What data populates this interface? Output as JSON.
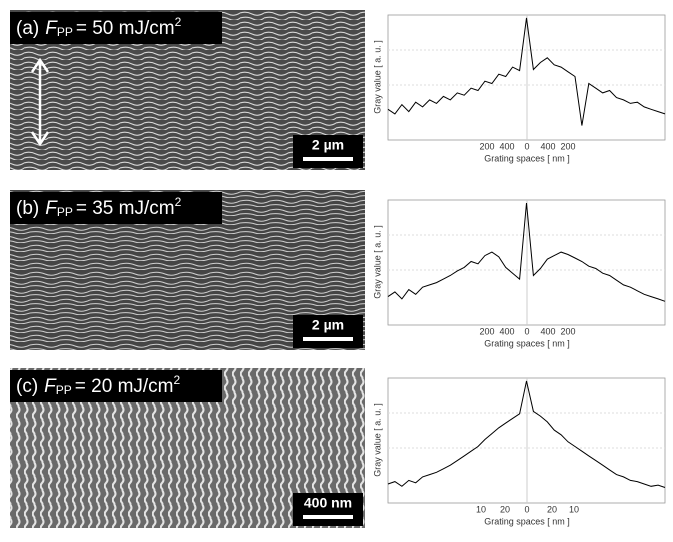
{
  "panels": [
    {
      "label": "(a)",
      "symbol": "F",
      "subscript": "PP",
      "value_text": "= 50 mJ/cm",
      "superscript": "2",
      "scale_bar": "2 µm",
      "plot": {
        "ylabel": "Gray value [ a. u. ]",
        "xlabel": "Grating spaces [ nm ]",
        "xtick_labels": [
          "200",
          "400",
          "0",
          "400",
          "200"
        ],
        "profile": [
          22,
          18,
          26,
          20,
          28,
          24,
          30,
          27,
          33,
          30,
          36,
          34,
          40,
          38,
          46,
          44,
          52,
          50,
          58,
          55,
          100,
          56,
          62,
          66,
          60,
          58,
          54,
          50,
          8,
          44,
          40,
          36,
          38,
          32,
          30,
          27,
          28,
          24,
          22,
          20,
          18
        ]
      }
    },
    {
      "label": "(b)",
      "symbol": "F",
      "subscript": "PP",
      "value_text": "= 35 mJ/cm",
      "superscript": "2",
      "scale_bar": "2 µm",
      "plot": {
        "ylabel": "Gray value [ a. u. ]",
        "xlabel": "Grating spaces [ nm ]",
        "xtick_labels": [
          "200",
          "400",
          "0",
          "400",
          "200"
        ],
        "profile": [
          20,
          24,
          18,
          26,
          22,
          28,
          30,
          32,
          35,
          38,
          42,
          45,
          50,
          48,
          55,
          58,
          54,
          45,
          40,
          35,
          100,
          38,
          44,
          52,
          55,
          58,
          56,
          53,
          50,
          46,
          44,
          40,
          38,
          34,
          30,
          28,
          25,
          22,
          20,
          18,
          16
        ]
      }
    },
    {
      "label": "(c)",
      "symbol": "F",
      "subscript": "PP",
      "value_text": "= 20 mJ/cm",
      "superscript": "2",
      "scale_bar": "400 nm",
      "plot": {
        "ylabel": "Gray value [ a. u. ]",
        "xlabel": "Grating spaces [ nm ]",
        "xtick_labels": [
          "10",
          "20",
          "0",
          "20",
          "10"
        ],
        "profile": [
          12,
          14,
          10,
          15,
          13,
          18,
          20,
          22,
          25,
          28,
          32,
          36,
          40,
          44,
          50,
          55,
          60,
          64,
          68,
          72,
          100,
          74,
          70,
          65,
          58,
          54,
          48,
          44,
          40,
          36,
          32,
          28,
          24,
          20,
          18,
          15,
          14,
          12,
          10,
          11,
          9
        ]
      }
    }
  ]
}
